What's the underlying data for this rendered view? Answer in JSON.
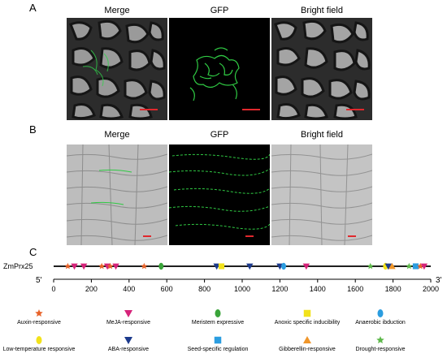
{
  "panels": {
    "a": {
      "letter": "A",
      "titles": [
        "Merge",
        "GFP",
        "Bright field"
      ]
    },
    "b": {
      "letter": "B",
      "titles": [
        "Merge",
        "GFP",
        "Bright field"
      ]
    },
    "c": {
      "letter": "C",
      "gene_label": "ZmPrx25",
      "end5": "5'",
      "end3": "3'",
      "axis_ticks": [
        "0",
        "200",
        "400",
        "600",
        "800",
        "1000",
        "1200",
        "1400",
        "1600",
        "1800",
        "2000"
      ]
    }
  },
  "legend": [
    {
      "label": "Auxin-responsive",
      "shape": "star",
      "color": "#e8632a"
    },
    {
      "label": "MeJA-responsive",
      "shape": "triangle-down",
      "color": "#d6237a"
    },
    {
      "label": "Meristem expressive",
      "shape": "ellipse",
      "color": "#3aa43a"
    },
    {
      "label": "Anoxic specific inducibility",
      "shape": "square",
      "color": "#f2e21b"
    },
    {
      "label": "Anaerobic ibduction",
      "shape": "ellipse",
      "color": "#2b9de0"
    },
    {
      "label": "Low-temperature responsive",
      "shape": "ellipse",
      "color": "#f2e21b"
    },
    {
      "label": "ABA-responsive",
      "shape": "triangle-down",
      "color": "#1c3a8c"
    },
    {
      "label": "Seed-specific regulation",
      "shape": "square",
      "color": "#2b9de0"
    },
    {
      "label": "Gibberellin-responsive",
      "shape": "triangle-up",
      "color": "#f0962a"
    },
    {
      "label": "Drought-responsive",
      "shape": "star",
      "color": "#5db84a"
    }
  ],
  "elements_on_map": [
    {
      "type": "Auxin-responsive",
      "pos": 75
    },
    {
      "type": "MeJA-responsive",
      "pos": 110
    },
    {
      "type": "MeJA-responsive",
      "pos": 160
    },
    {
      "type": "Auxin-responsive",
      "pos": 255
    },
    {
      "type": "MeJA-responsive",
      "pos": 285
    },
    {
      "type": "Auxin-responsive",
      "pos": 300
    },
    {
      "type": "MeJA-responsive",
      "pos": 330
    },
    {
      "type": "Auxin-responsive",
      "pos": 480
    },
    {
      "type": "Meristem expressive",
      "pos": 570
    },
    {
      "type": "ABA-responsive",
      "pos": 865
    },
    {
      "type": "Anoxic specific inducibility",
      "pos": 890
    },
    {
      "type": "ABA-responsive",
      "pos": 1040
    },
    {
      "type": "ABA-responsive",
      "pos": 1200
    },
    {
      "type": "Anaerobic ibduction",
      "pos": 1220
    },
    {
      "type": "MeJA-responsive",
      "pos": 1340
    },
    {
      "type": "Drought-responsive",
      "pos": 1680
    },
    {
      "type": "Low-temperature responsive",
      "pos": 1760
    },
    {
      "type": "ABA-responsive",
      "pos": 1775
    },
    {
      "type": "Gibberellin-responsive",
      "pos": 1795
    },
    {
      "type": "Drought-responsive",
      "pos": 1885
    },
    {
      "type": "Seed-specific regulation",
      "pos": 1920
    },
    {
      "type": "Auxin-responsive",
      "pos": 1945
    },
    {
      "type": "MeJA-responsive",
      "pos": 1965
    }
  ]
}
